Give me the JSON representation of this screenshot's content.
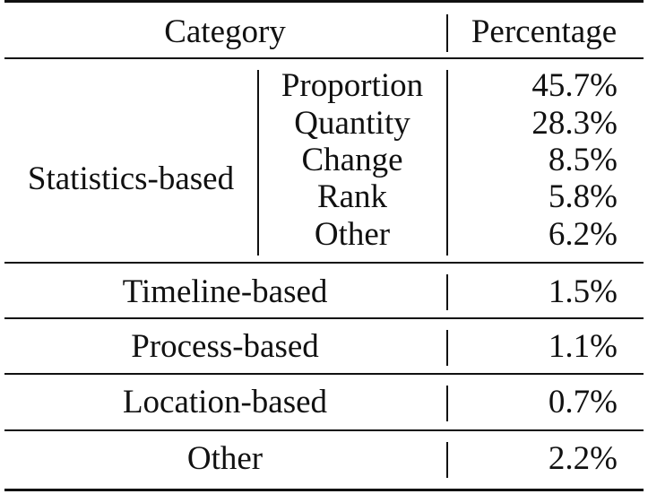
{
  "table": {
    "header": {
      "category": "Category",
      "percentage": "Percentage"
    },
    "statistics": {
      "group_label": "Statistics-based",
      "rows": [
        {
          "label": "Proportion",
          "value": "45.7%"
        },
        {
          "label": "Quantity",
          "value": "28.3%"
        },
        {
          "label": "Change",
          "value": "8.5%"
        },
        {
          "label": "Rank",
          "value": "5.8%"
        },
        {
          "label": "Other",
          "value": "6.2%"
        }
      ]
    },
    "rows": [
      {
        "label": "Timeline-based",
        "value": "1.5%"
      },
      {
        "label": "Process-based",
        "value": "1.1%"
      },
      {
        "label": "Location-based",
        "value": "0.7%"
      },
      {
        "label": "Other",
        "value": "2.2%"
      }
    ]
  }
}
